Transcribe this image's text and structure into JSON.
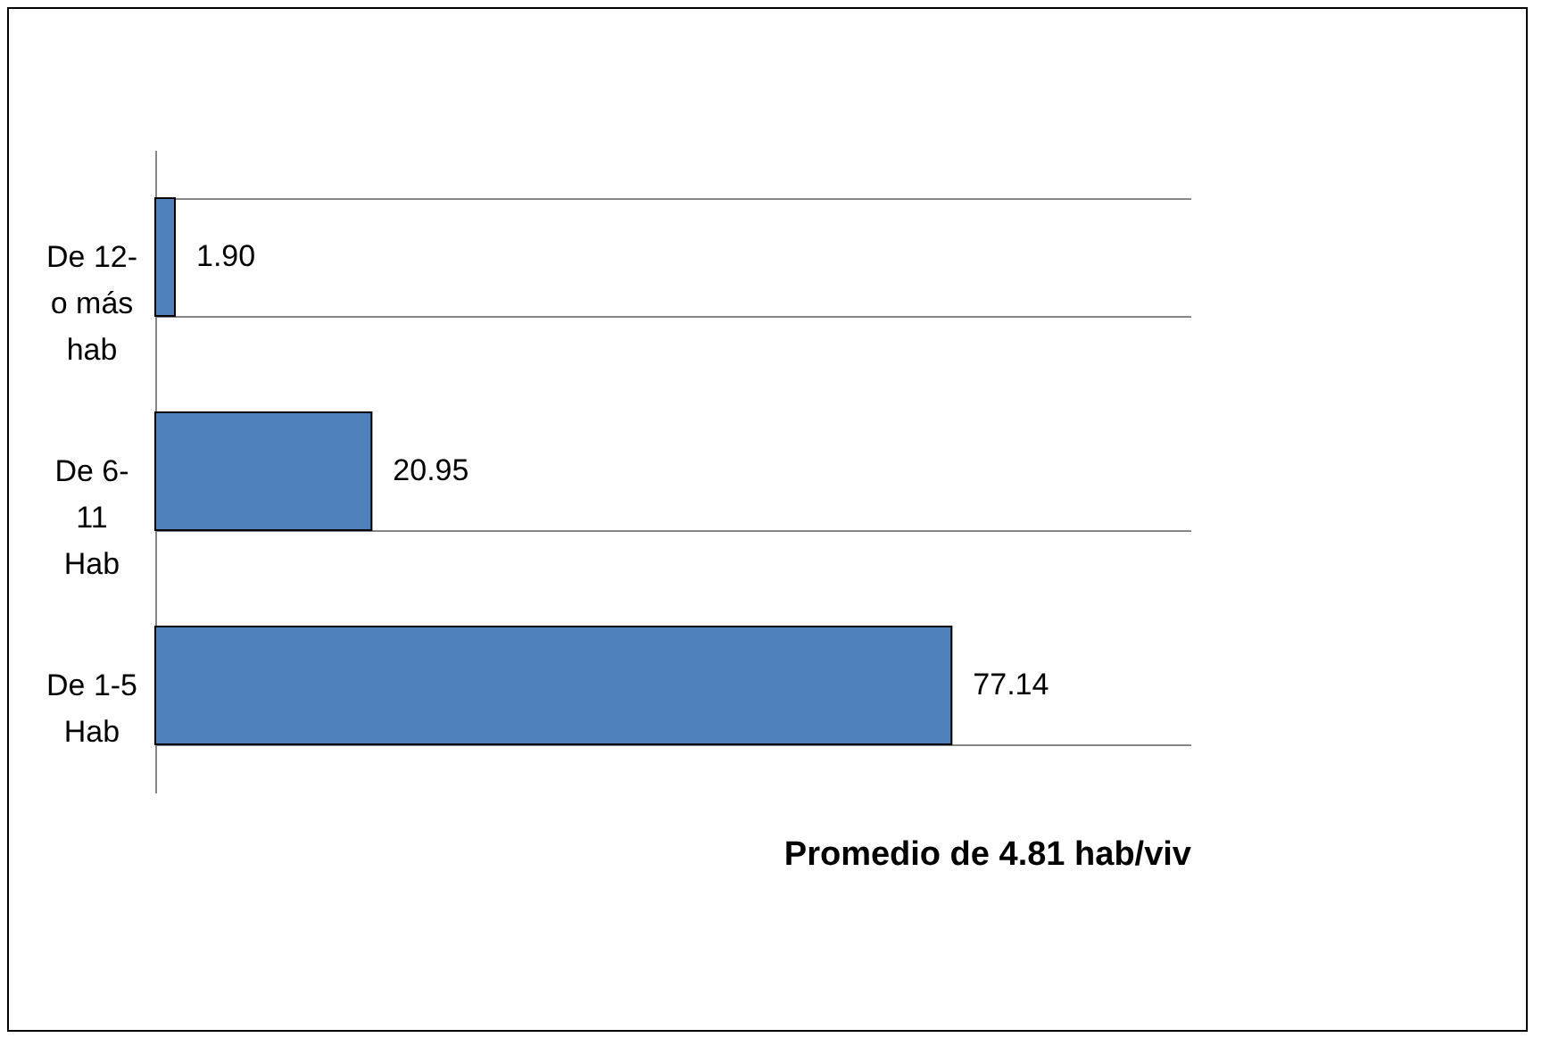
{
  "chart_data": {
    "type": "bar",
    "orientation": "horizontal",
    "xlabel": "Promedio de 4.81 hab/viv",
    "categories": [
      "De 12- o más hab",
      "De 6- 11 Hab",
      "De 1-5 Hab"
    ],
    "values": [
      1.9,
      20.95,
      77.14
    ],
    "value_labels": [
      "1.90",
      "20.95",
      "77.14"
    ],
    "color": "#4f81bd",
    "grid": "y"
  }
}
